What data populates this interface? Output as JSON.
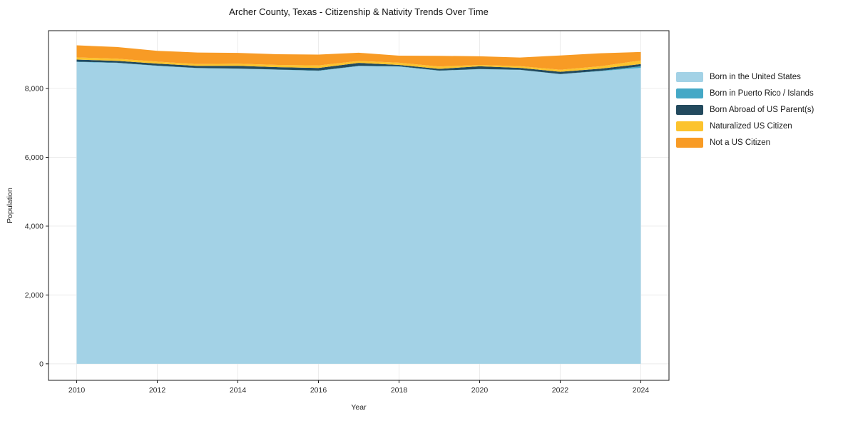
{
  "title": "Archer County, Texas - Citizenship & Nativity Trends Over Time",
  "chart_data": {
    "type": "area",
    "stacked": true,
    "title": "Archer County, Texas - Citizenship & Nativity Trends Over Time",
    "xlabel": "Year",
    "ylabel": "Population",
    "x": [
      2010,
      2011,
      2012,
      2013,
      2014,
      2015,
      2016,
      2017,
      2018,
      2019,
      2020,
      2021,
      2022,
      2023,
      2024
    ],
    "series": [
      {
        "name": "Born in the United States",
        "color": "#a3d2e6",
        "values": [
          8770,
          8740,
          8655,
          8590,
          8575,
          8545,
          8510,
          8650,
          8635,
          8515,
          8560,
          8540,
          8415,
          8505,
          8600
        ]
      },
      {
        "name": "Born in Puerto Rico / Islands",
        "color": "#44a8c6",
        "values": [
          10,
          10,
          10,
          5,
          5,
          5,
          10,
          10,
          10,
          5,
          5,
          5,
          5,
          10,
          45
        ]
      },
      {
        "name": "Born Abroad of US Parent(s)",
        "color": "#234a5e",
        "values": [
          60,
          55,
          60,
          60,
          80,
          70,
          75,
          85,
          40,
          50,
          80,
          55,
          65,
          60,
          65
        ]
      },
      {
        "name": "Naturalized US Citizen",
        "color": "#fcc32d",
        "values": [
          65,
          60,
          55,
          55,
          60,
          65,
          75,
          55,
          65,
          70,
          40,
          50,
          60,
          70,
          105
        ]
      },
      {
        "name": "Not a US Citizen",
        "color": "#f89b25",
        "values": [
          350,
          340,
          315,
          335,
          315,
          310,
          315,
          240,
          205,
          310,
          250,
          250,
          415,
          380,
          245
        ]
      }
    ],
    "xticks": {
      "values": [
        2010,
        2012,
        2014,
        2016,
        2018,
        2020,
        2022,
        2024
      ],
      "labels": [
        "2010",
        "2012",
        "2014",
        "2016",
        "2018",
        "2020",
        "2022",
        "2024"
      ]
    },
    "yticks": {
      "values": [
        0,
        2000,
        4000,
        6000,
        8000
      ],
      "labels": [
        "0",
        "2,000",
        "4,000",
        "6,000",
        "8,000"
      ]
    },
    "xlim": [
      2009.3,
      2024.7
    ],
    "ylim": [
      -480,
      9680
    ],
    "grid": true,
    "grid_color": "#ececec",
    "axis_color": "#1a1a1a",
    "tick_label_color": "#262626",
    "legend_position": "right"
  }
}
